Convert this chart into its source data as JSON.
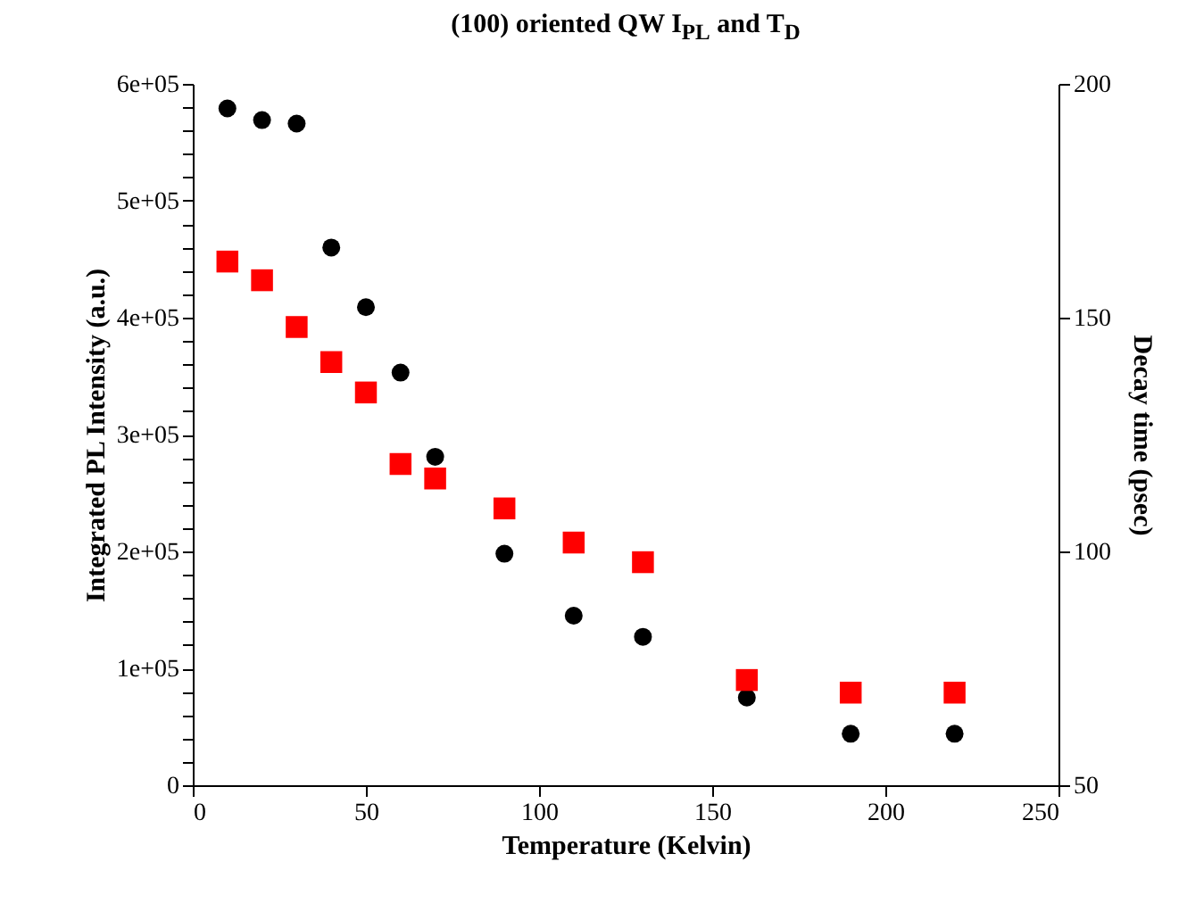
{
  "chart_data": {
    "type": "scatter",
    "title": "(100) oriented QW I$_{PL}$ and T$_{D}$",
    "xlabel": "Temperature (Kelvin)",
    "ylabel": "Integrated PL Intensity (a.u.)",
    "y2label": "Decay time (psec)",
    "x": [
      10,
      20,
      30,
      40,
      50,
      60,
      70,
      90,
      110,
      130,
      160,
      190,
      220
    ],
    "series": [
      {
        "color": "#000000",
        "marker": "circle",
        "values": [
          579000,
          569000,
          566000,
          460000,
          409000,
          353000,
          281000,
          198000,
          145000,
          127000,
          75000,
          44000,
          44000
        ]
      },
      {
        "color": "#ff0000",
        "marker": "square",
        "axis": "y2",
        "values": [
          162,
          158,
          148,
          140.5,
          134,
          118.7,
          115.6,
          109.2,
          101.9,
          97.7,
          72.5,
          69.8,
          69.8
        ]
      }
    ],
    "xlim": [
      0,
      250
    ],
    "xticks": [
      0,
      50,
      100,
      150,
      200,
      250
    ],
    "ylim": [
      0,
      600000
    ],
    "yticks": [
      {
        "value": 0,
        "label": "0"
      },
      {
        "value": 20000,
        "label": null
      },
      {
        "value": 40000,
        "label": null
      },
      {
        "value": 60000,
        "label": null
      },
      {
        "value": 80000,
        "label": null
      },
      {
        "value": 100000,
        "label": "1e+05"
      },
      {
        "value": 120000,
        "label": null
      },
      {
        "value": 140000,
        "label": null
      },
      {
        "value": 160000,
        "label": null
      },
      {
        "value": 180000,
        "label": null
      },
      {
        "value": 200000,
        "label": "2e+05"
      },
      {
        "value": 220000,
        "label": null
      },
      {
        "value": 240000,
        "label": null
      },
      {
        "value": 260000,
        "label": null
      },
      {
        "value": 280000,
        "label": null
      },
      {
        "value": 300000,
        "label": "3e+05"
      },
      {
        "value": 320000,
        "label": null
      },
      {
        "value": 340000,
        "label": null
      },
      {
        "value": 360000,
        "label": null
      },
      {
        "value": 380000,
        "label": null
      },
      {
        "value": 400000,
        "label": "4e+05"
      },
      {
        "value": 420000,
        "label": null
      },
      {
        "value": 440000,
        "label": null
      },
      {
        "value": 460000,
        "label": null
      },
      {
        "value": 480000,
        "label": null
      },
      {
        "value": 500000,
        "label": "5e+05"
      },
      {
        "value": 520000,
        "label": null
      },
      {
        "value": 540000,
        "label": null
      },
      {
        "value": 560000,
        "label": null
      },
      {
        "value": 580000,
        "label": null
      },
      {
        "value": 600000,
        "label": "6e+05"
      }
    ],
    "y2lim": [
      50,
      200
    ],
    "y2ticks": [
      50,
      100,
      150,
      200
    ],
    "grid": false
  }
}
